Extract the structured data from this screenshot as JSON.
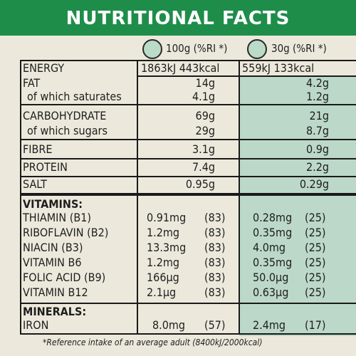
{
  "title": "NUTRITIONAL FACTS",
  "columns": {
    "per100": "100g (%RI *)",
    "per30": "30g (%RI *)"
  },
  "energy": {
    "label": "ENERGY",
    "per100": "1863kJ 443kcal",
    "per30": "559kJ 133kcal"
  },
  "macros": [
    {
      "label": "FAT",
      "per100": "14g",
      "per30": "4.2g"
    },
    {
      "label": "of which saturates",
      "per100": "4.1g",
      "per30": "1.2g"
    },
    {
      "label": "CARBOHYDRATE",
      "per100": "69g",
      "per30": "21g"
    },
    {
      "label": "of which sugars",
      "per100": "29g",
      "per30": "8.7g"
    },
    {
      "label": "FIBRE",
      "per100": "3.1g",
      "per30": "0.9g"
    },
    {
      "label": "PROTEIN",
      "per100": "7.4g",
      "per30": "2.2g"
    },
    {
      "label": "SALT",
      "per100": "0.95g",
      "per30": "0.29g"
    }
  ],
  "vitamins_heading": "VITAMINS:",
  "vitamins": [
    {
      "label": "THIAMIN (B1)",
      "per100": "0.91mg",
      "ri100": "(83)",
      "per30": "0.28mg",
      "ri30": "(25)"
    },
    {
      "label": "RIBOFLAVIN (B2)",
      "per100": "1.2mg",
      "ri100": "(83)",
      "per30": "0.35mg",
      "ri30": "(25)"
    },
    {
      "label": "NIACIN (B3)",
      "per100": "13.3mg",
      "ri100": "(83)",
      "per30": "4.0mg",
      "ri30": "(25)"
    },
    {
      "label": "VITAMIN B6",
      "per100": "1.2mg",
      "ri100": "(83)",
      "per30": "0.35mg",
      "ri30": "(25)"
    },
    {
      "label": "FOLIC ACID (B9)",
      "per100": "166µg",
      "ri100": "(83)",
      "per30": "50.0µg",
      "ri30": "(25)"
    },
    {
      "label": "VITAMIN B12",
      "per100": "2.1µg",
      "ri100": "(83)",
      "per30": "0.63µg",
      "ri30": "(25)"
    }
  ],
  "minerals_heading": "MINERALS:",
  "minerals": [
    {
      "label": "IRON",
      "per100": "8.0mg",
      "ri100": "(57)",
      "per30": "2.4mg",
      "ri30": "(17)"
    }
  ],
  "footnote": "*Reference intake of an average adult (8400kJ/2000kcal)",
  "colors": {
    "title_bar": "#1f8d4a",
    "shade": "#bcd8c9",
    "background": "#ece9dc"
  }
}
